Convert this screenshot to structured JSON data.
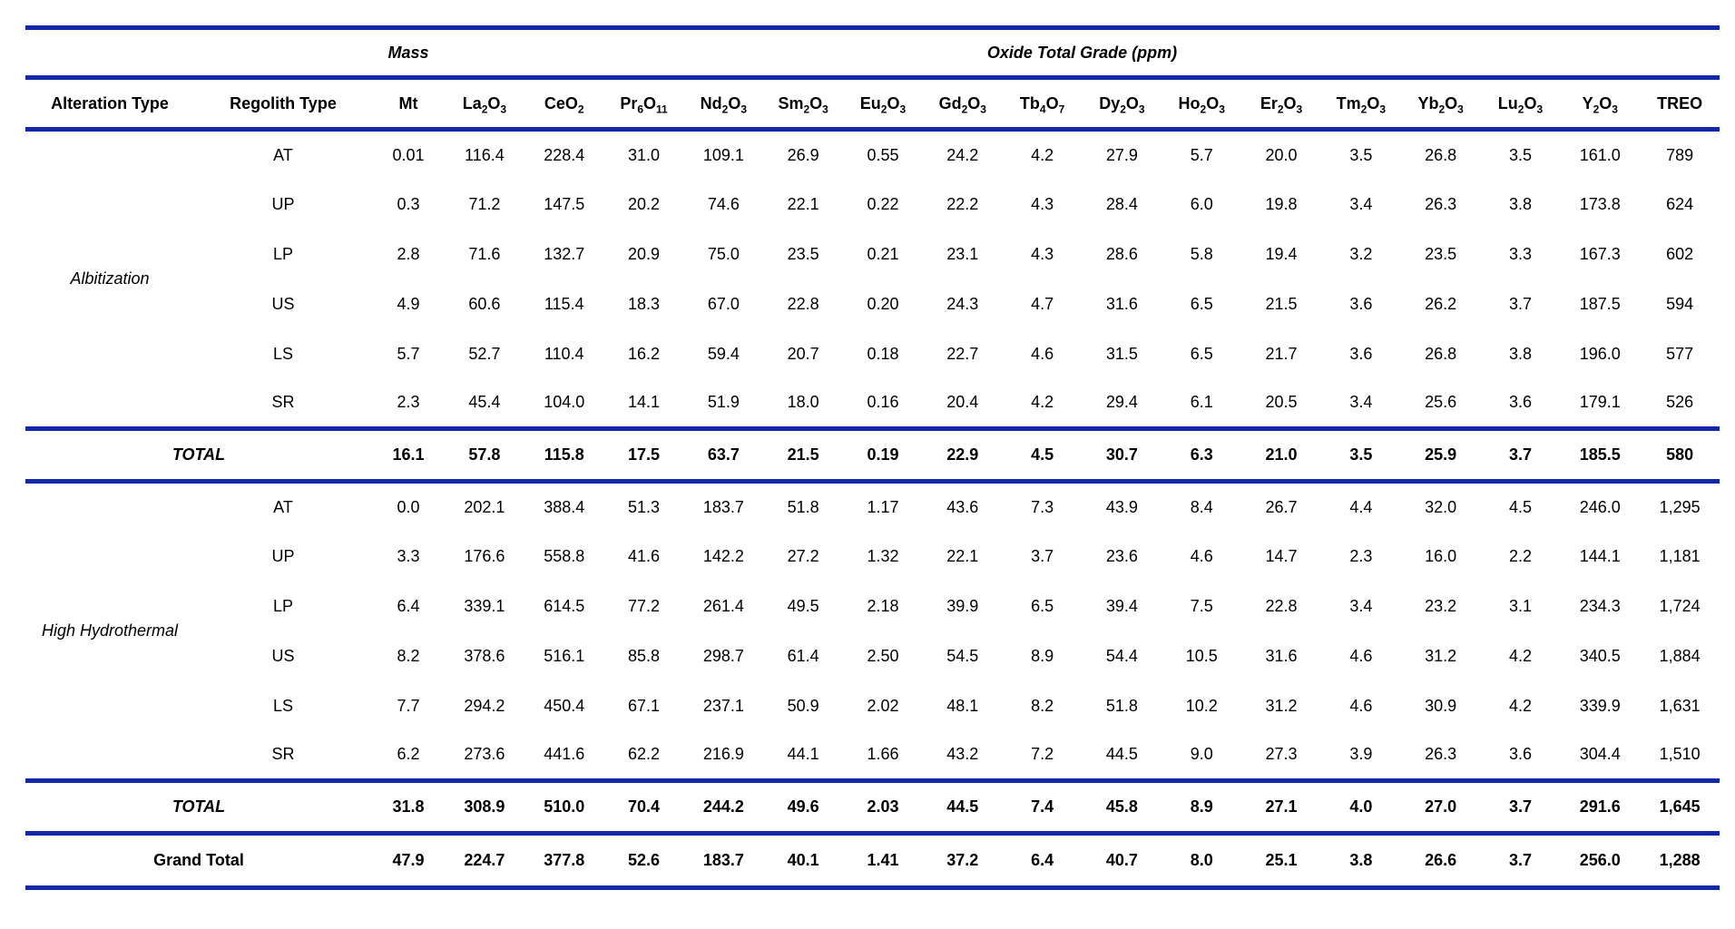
{
  "table": {
    "group_header": {
      "mass": "Mass",
      "oxide": "Oxide Total Grade (ppm)"
    },
    "columns": [
      {
        "name": "alteration-type",
        "parts": [
          [
            "Alteration Type",
            0
          ]
        ]
      },
      {
        "name": "regolith-type",
        "parts": [
          [
            "Regolith Type",
            0
          ]
        ]
      },
      {
        "name": "mt",
        "parts": [
          [
            "Mt",
            0
          ]
        ]
      },
      {
        "name": "la2o3",
        "parts": [
          [
            "La",
            0
          ],
          [
            "2",
            1
          ],
          [
            "O",
            0
          ],
          [
            "3",
            1
          ]
        ]
      },
      {
        "name": "ceo2",
        "parts": [
          [
            "CeO",
            0
          ],
          [
            "2",
            1
          ]
        ]
      },
      {
        "name": "pr6o11",
        "parts": [
          [
            "Pr",
            0
          ],
          [
            "6",
            1
          ],
          [
            "O",
            0
          ],
          [
            "11",
            1
          ]
        ]
      },
      {
        "name": "nd2o3",
        "parts": [
          [
            "Nd",
            0
          ],
          [
            "2",
            1
          ],
          [
            "O",
            0
          ],
          [
            "3",
            1
          ]
        ]
      },
      {
        "name": "sm2o3",
        "parts": [
          [
            "Sm",
            0
          ],
          [
            "2",
            1
          ],
          [
            "O",
            0
          ],
          [
            "3",
            1
          ]
        ]
      },
      {
        "name": "eu2o3",
        "parts": [
          [
            "Eu",
            0
          ],
          [
            "2",
            1
          ],
          [
            "O",
            0
          ],
          [
            "3",
            1
          ]
        ]
      },
      {
        "name": "gd2o3",
        "parts": [
          [
            "Gd",
            0
          ],
          [
            "2",
            1
          ],
          [
            "O",
            0
          ],
          [
            "3",
            1
          ]
        ]
      },
      {
        "name": "tb4o7",
        "parts": [
          [
            "Tb",
            0
          ],
          [
            "4",
            1
          ],
          [
            "O",
            0
          ],
          [
            "7",
            1
          ]
        ]
      },
      {
        "name": "dy2o3",
        "parts": [
          [
            "Dy",
            0
          ],
          [
            "2",
            1
          ],
          [
            "O",
            0
          ],
          [
            "3",
            1
          ]
        ]
      },
      {
        "name": "ho2o3",
        "parts": [
          [
            "Ho",
            0
          ],
          [
            "2",
            1
          ],
          [
            "O",
            0
          ],
          [
            "3",
            1
          ]
        ]
      },
      {
        "name": "er2o3",
        "parts": [
          [
            "Er",
            0
          ],
          [
            "2",
            1
          ],
          [
            "O",
            0
          ],
          [
            "3",
            1
          ]
        ]
      },
      {
        "name": "tm2o3",
        "parts": [
          [
            "Tm",
            0
          ],
          [
            "2",
            1
          ],
          [
            "O",
            0
          ],
          [
            "3",
            1
          ]
        ]
      },
      {
        "name": "yb2o3",
        "parts": [
          [
            "Yb",
            0
          ],
          [
            "2",
            1
          ],
          [
            "O",
            0
          ],
          [
            "3",
            1
          ]
        ]
      },
      {
        "name": "lu2o3",
        "parts": [
          [
            "Lu",
            0
          ],
          [
            "2",
            1
          ],
          [
            "O",
            0
          ],
          [
            "3",
            1
          ]
        ]
      },
      {
        "name": "y2o3",
        "parts": [
          [
            "Y",
            0
          ],
          [
            "2",
            1
          ],
          [
            "O",
            0
          ],
          [
            "3",
            1
          ]
        ]
      },
      {
        "name": "treo",
        "parts": [
          [
            "TREO",
            0
          ]
        ]
      }
    ],
    "sections": [
      {
        "label": "Albitization",
        "rows": [
          {
            "regolith": "AT",
            "values": [
              "0.01",
              "116.4",
              "228.4",
              "31.0",
              "109.1",
              "26.9",
              "0.55",
              "24.2",
              "4.2",
              "27.9",
              "5.7",
              "20.0",
              "3.5",
              "26.8",
              "3.5",
              "161.0",
              "789"
            ]
          },
          {
            "regolith": "UP",
            "values": [
              "0.3",
              "71.2",
              "147.5",
              "20.2",
              "74.6",
              "22.1",
              "0.22",
              "22.2",
              "4.3",
              "28.4",
              "6.0",
              "19.8",
              "3.4",
              "26.3",
              "3.8",
              "173.8",
              "624"
            ]
          },
          {
            "regolith": "LP",
            "values": [
              "2.8",
              "71.6",
              "132.7",
              "20.9",
              "75.0",
              "23.5",
              "0.21",
              "23.1",
              "4.3",
              "28.6",
              "5.8",
              "19.4",
              "3.2",
              "23.5",
              "3.3",
              "167.3",
              "602"
            ]
          },
          {
            "regolith": "US",
            "values": [
              "4.9",
              "60.6",
              "115.4",
              "18.3",
              "67.0",
              "22.8",
              "0.20",
              "24.3",
              "4.7",
              "31.6",
              "6.5",
              "21.5",
              "3.6",
              "26.2",
              "3.7",
              "187.5",
              "594"
            ]
          },
          {
            "regolith": "LS",
            "values": [
              "5.7",
              "52.7",
              "110.4",
              "16.2",
              "59.4",
              "20.7",
              "0.18",
              "22.7",
              "4.6",
              "31.5",
              "6.5",
              "21.7",
              "3.6",
              "26.8",
              "3.8",
              "196.0",
              "577"
            ]
          },
          {
            "regolith": "SR",
            "values": [
              "2.3",
              "45.4",
              "104.0",
              "14.1",
              "51.9",
              "18.0",
              "0.16",
              "20.4",
              "4.2",
              "29.4",
              "6.1",
              "20.5",
              "3.4",
              "25.6",
              "3.6",
              "179.1",
              "526"
            ]
          }
        ],
        "total_label": "TOTAL",
        "total_values": [
          "16.1",
          "57.8",
          "115.8",
          "17.5",
          "63.7",
          "21.5",
          "0.19",
          "22.9",
          "4.5",
          "30.7",
          "6.3",
          "21.0",
          "3.5",
          "25.9",
          "3.7",
          "185.5",
          "580"
        ]
      },
      {
        "label": "High Hydrothermal",
        "rows": [
          {
            "regolith": "AT",
            "values": [
              "0.0",
              "202.1",
              "388.4",
              "51.3",
              "183.7",
              "51.8",
              "1.17",
              "43.6",
              "7.3",
              "43.9",
              "8.4",
              "26.7",
              "4.4",
              "32.0",
              "4.5",
              "246.0",
              "1,295"
            ]
          },
          {
            "regolith": "UP",
            "values": [
              "3.3",
              "176.6",
              "558.8",
              "41.6",
              "142.2",
              "27.2",
              "1.32",
              "22.1",
              "3.7",
              "23.6",
              "4.6",
              "14.7",
              "2.3",
              "16.0",
              "2.2",
              "144.1",
              "1,181"
            ]
          },
          {
            "regolith": "LP",
            "values": [
              "6.4",
              "339.1",
              "614.5",
              "77.2",
              "261.4",
              "49.5",
              "2.18",
              "39.9",
              "6.5",
              "39.4",
              "7.5",
              "22.8",
              "3.4",
              "23.2",
              "3.1",
              "234.3",
              "1,724"
            ]
          },
          {
            "regolith": "US",
            "values": [
              "8.2",
              "378.6",
              "516.1",
              "85.8",
              "298.7",
              "61.4",
              "2.50",
              "54.5",
              "8.9",
              "54.4",
              "10.5",
              "31.6",
              "4.6",
              "31.2",
              "4.2",
              "340.5",
              "1,884"
            ]
          },
          {
            "regolith": "LS",
            "values": [
              "7.7",
              "294.2",
              "450.4",
              "67.1",
              "237.1",
              "50.9",
              "2.02",
              "48.1",
              "8.2",
              "51.8",
              "10.2",
              "31.2",
              "4.6",
              "30.9",
              "4.2",
              "339.9",
              "1,631"
            ]
          },
          {
            "regolith": "SR",
            "values": [
              "6.2",
              "273.6",
              "441.6",
              "62.2",
              "216.9",
              "44.1",
              "1.66",
              "43.2",
              "7.2",
              "44.5",
              "9.0",
              "27.3",
              "3.9",
              "26.3",
              "3.6",
              "304.4",
              "1,510"
            ]
          }
        ],
        "total_label": "TOTAL",
        "total_values": [
          "31.8",
          "308.9",
          "510.0",
          "70.4",
          "244.2",
          "49.6",
          "2.03",
          "44.5",
          "7.4",
          "45.8",
          "8.9",
          "27.1",
          "4.0",
          "27.0",
          "3.7",
          "291.6",
          "1,645"
        ]
      }
    ],
    "grand_total": {
      "label": "Grand Total",
      "values": [
        "47.9",
        "224.7",
        "377.8",
        "52.6",
        "183.7",
        "40.1",
        "1.41",
        "37.2",
        "6.4",
        "40.7",
        "8.0",
        "25.1",
        "3.8",
        "26.6",
        "3.7",
        "256.0",
        "1,288"
      ]
    },
    "accent_color": "#1228a8"
  }
}
